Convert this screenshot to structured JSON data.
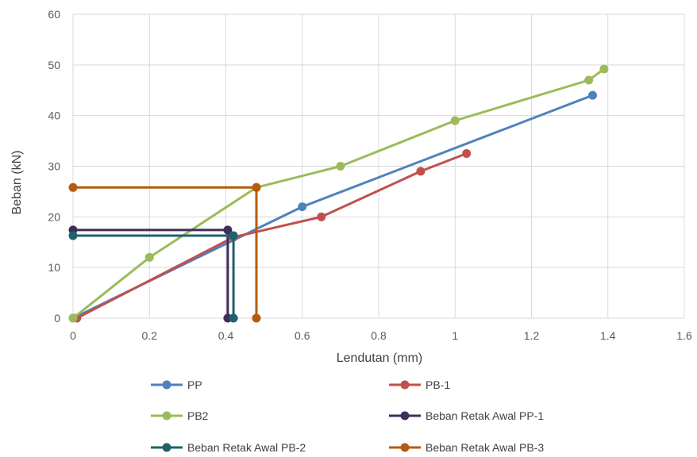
{
  "chart_data": {
    "type": "scatter",
    "xlabel": "Lendutan (mm)",
    "ylabel": "Beban (kN)",
    "xlim": [
      0,
      1.6
    ],
    "ylim": [
      0,
      60
    ],
    "xticks": [
      "0",
      "0.2",
      "0.4",
      "0.6",
      "0.8",
      "1",
      "1.2",
      "1.4",
      "1.6"
    ],
    "yticks": [
      "0",
      "10",
      "20",
      "30",
      "40",
      "50",
      "60"
    ],
    "grid": true,
    "legend_position": "bottom",
    "series": [
      {
        "name": "PP",
        "color": "#4f81bd",
        "x": [
          0,
          0.6,
          1.36
        ],
        "y": [
          0,
          22,
          44
        ]
      },
      {
        "name": "PB-1",
        "color": "#c0504d",
        "x": [
          0.01,
          0.42,
          0.65,
          0.91,
          1.03
        ],
        "y": [
          0,
          16,
          20,
          29,
          32.5
        ]
      },
      {
        "name": "PB2",
        "color": "#9bbb59",
        "x": [
          0,
          0.2,
          0.48,
          0.7,
          1.0,
          1.35,
          1.39
        ],
        "y": [
          0,
          12,
          25.8,
          30,
          39,
          47,
          49.2
        ]
      },
      {
        "name": "Beban Retak Awal PP-1",
        "color": "#3f2d5e",
        "x": [
          0,
          0.405,
          0.405
        ],
        "y": [
          17.4,
          17.4,
          0
        ]
      },
      {
        "name": "Beban Retak Awal PB-2",
        "color": "#21616b",
        "x": [
          0,
          0.42,
          0.42
        ],
        "y": [
          16.3,
          16.3,
          0
        ]
      },
      {
        "name": "Beban Retak Awal PB-3",
        "color": "#b65a0e",
        "x": [
          0,
          0.48,
          0.48
        ],
        "y": [
          25.8,
          25.8,
          0
        ]
      }
    ]
  }
}
